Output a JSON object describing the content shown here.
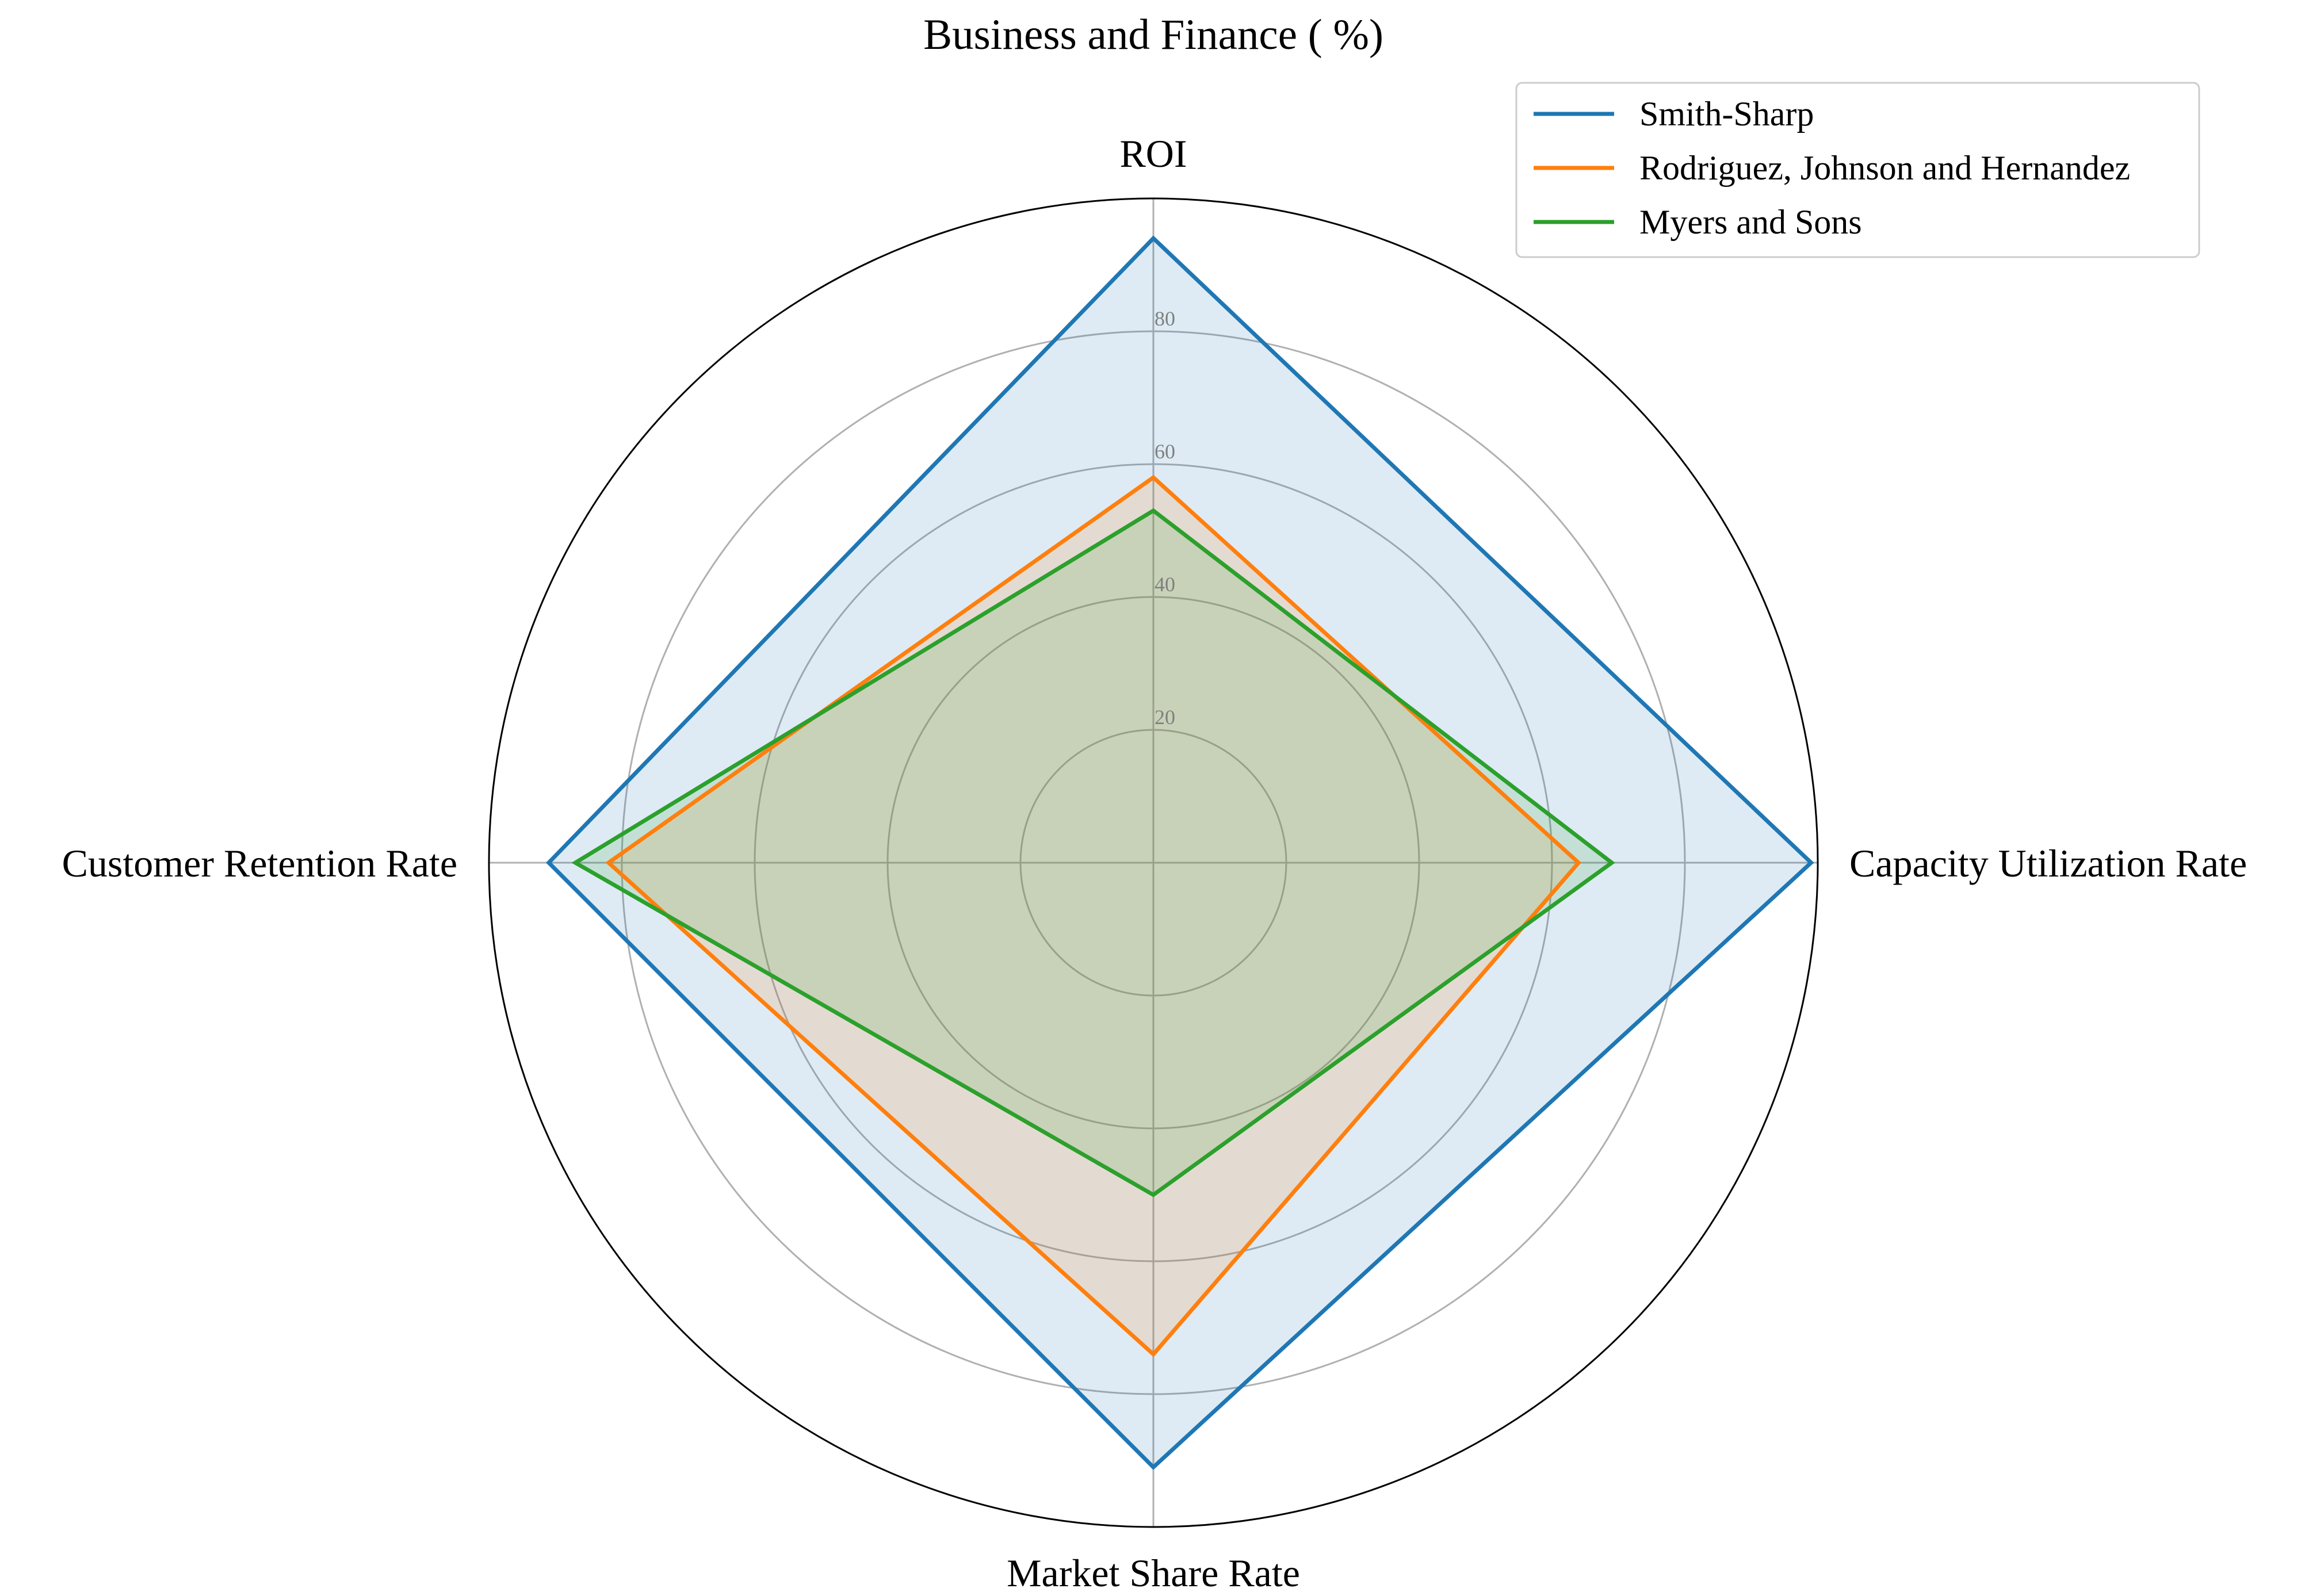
{
  "chart_data": {
    "type": "radar",
    "title": "Business and Finance ( %)",
    "axes": [
      "ROI",
      "Capacity Utilization Rate",
      "Market Share Rate",
      "Customer Retention Rate"
    ],
    "rlim": [
      0,
      100
    ],
    "rticks": [
      "20",
      "40",
      "60",
      "80"
    ],
    "rtick_values": [
      20,
      40,
      60,
      80
    ],
    "grid": true,
    "legend_position": "top-right",
    "series": [
      {
        "name": "Smith-Sharp",
        "values": [
          94,
          99,
          91,
          91
        ],
        "color": "#1f77b4"
      },
      {
        "name": "Rodriguez, Johnson and Hernandez",
        "values": [
          58,
          64,
          74,
          82
        ],
        "color": "#ff7f0e"
      },
      {
        "name": "Myers and Sons",
        "values": [
          53,
          69,
          50,
          87
        ],
        "color": "#2ca02c"
      }
    ]
  }
}
